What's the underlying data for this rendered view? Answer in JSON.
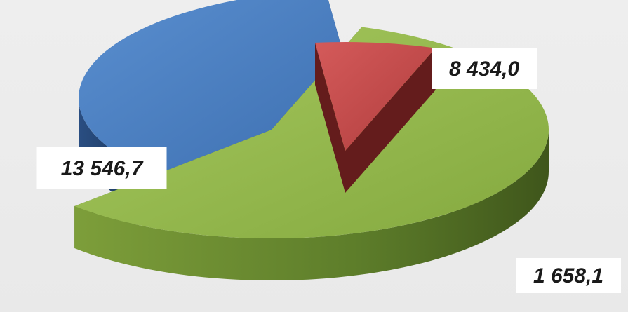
{
  "chart_data": {
    "type": "pie",
    "style": "3d-exploded",
    "slices": [
      {
        "label": "13 546,7",
        "value": 13546.7,
        "color": "#8fb24a",
        "side_color": "#4f6a24"
      },
      {
        "label": "8 434,0",
        "value": 8434.0,
        "color": "#4a7fc1",
        "side_color": "#1d3b66"
      },
      {
        "label": "1 658,1",
        "value": 1658.1,
        "color": "#c24a4a",
        "side_color": "#641c1c"
      }
    ],
    "legend": "none"
  }
}
